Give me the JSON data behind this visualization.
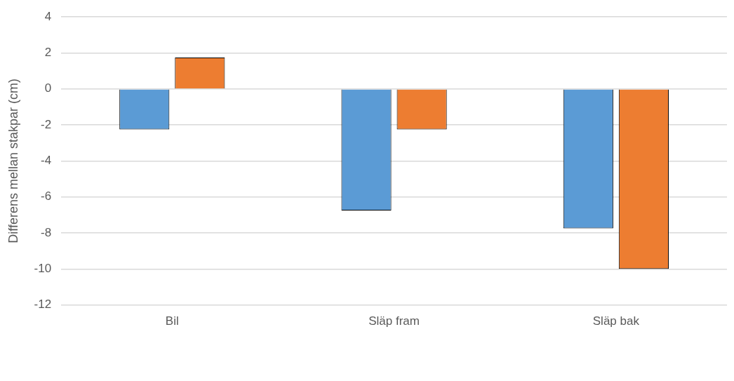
{
  "chart_data": {
    "type": "bar",
    "ylabel": "Differens mellan stakpar (cm)",
    "categories": [
      "Bil",
      "Släp fram",
      "Släp bak"
    ],
    "series": [
      {
        "color": "#5b9bd5",
        "values": [
          -2.25,
          -6.75,
          -7.75
        ]
      },
      {
        "color": "#ed7d31",
        "values": [
          1.75,
          -2.25,
          -10
        ]
      }
    ],
    "ylim": [
      -12,
      4
    ],
    "yticks": [
      -12,
      -10,
      -8,
      -6,
      -4,
      -2,
      0,
      2,
      4
    ],
    "grid": "y"
  }
}
